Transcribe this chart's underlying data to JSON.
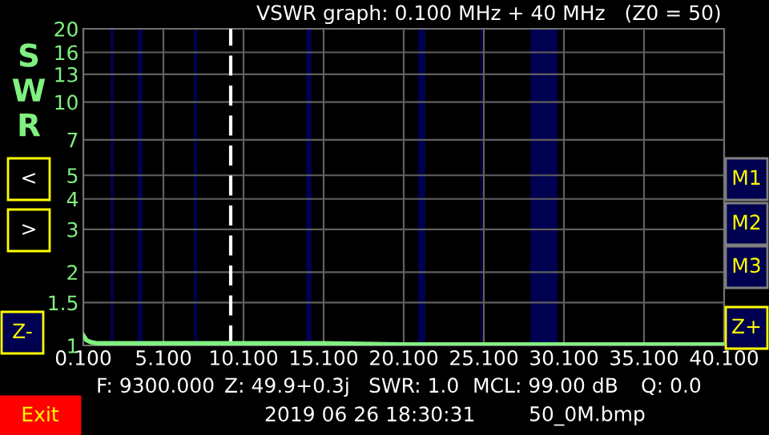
{
  "chart_data": {
    "type": "line",
    "title": "VSWR graph: 0.100 MHz + 40 MHz   (Z0 = 50)",
    "ylabel": "SWR",
    "x": [
      0.1,
      0.3,
      0.6,
      1.0,
      2.0,
      5.0,
      8.0,
      10.0,
      12.0,
      15.0,
      20.0,
      25.0,
      30.0,
      35.0,
      40.1
    ],
    "series": [
      {
        "color": "#80f080",
        "values": [
          1.1,
          1.05,
          1.03,
          1.02,
          1.02,
          1.02,
          1.02,
          1.02,
          1.02,
          1.02,
          1.01,
          1.01,
          1.01,
          1.01,
          1.01
        ]
      }
    ],
    "log": "y",
    "xlim": [
      0.1,
      40.1
    ],
    "ylim": [
      1,
      20
    ],
    "xticks": [
      {
        "value": 0.1,
        "label": "0.100"
      },
      {
        "value": 5.1,
        "label": "5.100"
      },
      {
        "value": 10.1,
        "label": "10.100"
      },
      {
        "value": 15.1,
        "label": "15.100"
      },
      {
        "value": 20.1,
        "label": "20.100"
      },
      {
        "value": 25.1,
        "label": "25.100"
      },
      {
        "value": 30.1,
        "label": "30.100"
      },
      {
        "value": 35.1,
        "label": "35.100"
      },
      {
        "value": 40.1,
        "label": "40.100"
      }
    ],
    "yticks": [
      1,
      1.5,
      2,
      3,
      4,
      5,
      7,
      10,
      13,
      16,
      20
    ],
    "grid": true,
    "legend": false,
    "ref_lines": [
      {
        "axis": "x",
        "value": 9.3,
        "color": "#ffffff",
        "line_style": "dashed"
      }
    ],
    "bands": [
      {
        "axis": "x",
        "from": 1.8,
        "to": 2.0,
        "color": "#000050"
      },
      {
        "axis": "x",
        "from": 3.5,
        "to": 3.8,
        "color": "#000050"
      },
      {
        "axis": "x",
        "from": 7.0,
        "to": 7.2,
        "color": "#000050"
      },
      {
        "axis": "x",
        "from": 14.0,
        "to": 14.35,
        "color": "#000050"
      },
      {
        "axis": "x",
        "from": 21.0,
        "to": 21.45,
        "color": "#000050"
      },
      {
        "axis": "x",
        "from": 24.89,
        "to": 24.99,
        "color": "#000050"
      },
      {
        "axis": "x",
        "from": 28.0,
        "to": 29.7,
        "color": "#000050"
      }
    ],
    "annotations": [
      "<",
      ">",
      "Z-",
      "M1",
      "M2",
      "M3",
      "Z+",
      "F: 9300.000",
      "Z: 49.9+0.3j",
      "SWR: 1.0",
      "MCL: 99.00 dB",
      "Q: 0.0",
      "Exit",
      "2019 06 26 18:30:31",
      "50_0M.bmp"
    ]
  }
}
